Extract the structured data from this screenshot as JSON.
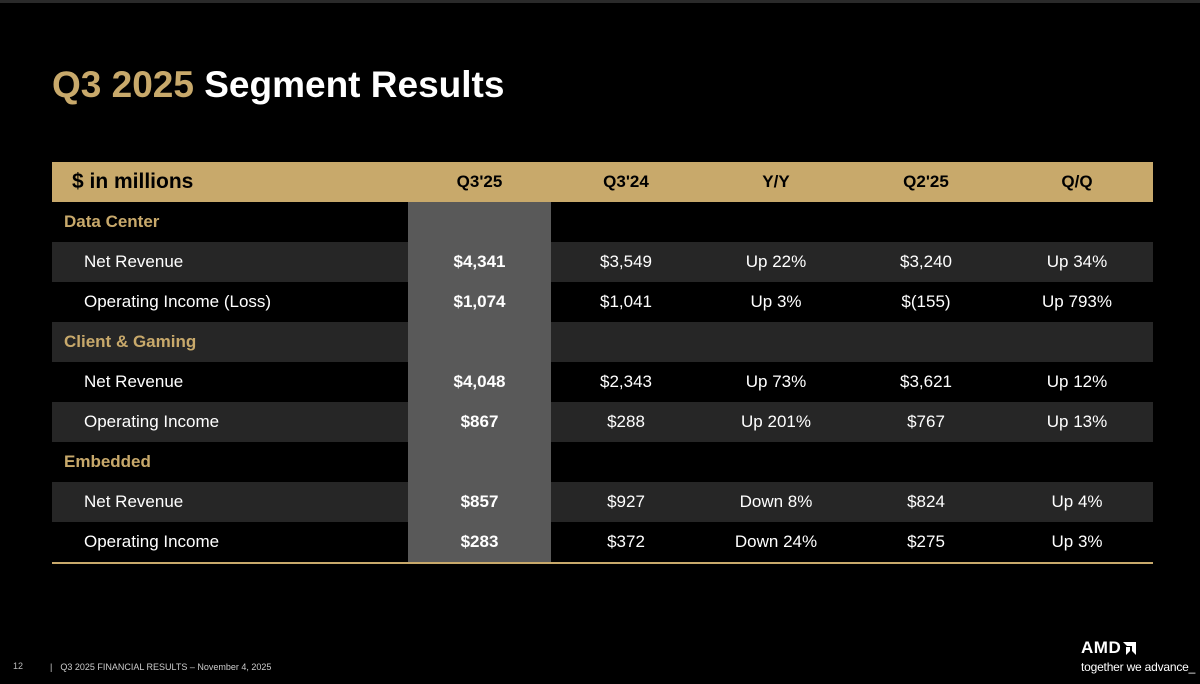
{
  "slide": {
    "title_accent": "Q3 2025",
    "title_rest": "Segment Results",
    "page_number": "12",
    "footer_separator": "|",
    "footer_text": "Q3 2025 FINANCIAL RESULTS – November 4, 2025"
  },
  "brand": {
    "logo_text": "AMD",
    "logo_icon": "amd-arrow-icon",
    "tagline": "together we advance_"
  },
  "colors": {
    "gold": "#c8a96b",
    "highlight_column": "#595959",
    "row_band": "#262626",
    "background": "#000000"
  },
  "table": {
    "headers": [
      "$ in millions",
      "Q3'25",
      "Q3'24",
      "Y/Y",
      "Q2'25",
      "Q/Q"
    ],
    "sections": [
      {
        "name": "Data Center",
        "rows": [
          {
            "label": "Net Revenue",
            "values": [
              "$4,341",
              "$3,549",
              "Up 22%",
              "$3,240",
              "Up 34%"
            ]
          },
          {
            "label": "Operating Income (Loss)",
            "values": [
              "$1,074",
              "$1,041",
              "Up 3%",
              "$(155)",
              "Up 793%"
            ]
          }
        ]
      },
      {
        "name": "Client & Gaming",
        "rows": [
          {
            "label": "Net Revenue",
            "values": [
              "$4,048",
              "$2,343",
              "Up 73%",
              "$3,621",
              "Up 12%"
            ]
          },
          {
            "label": "Operating Income",
            "values": [
              "$867",
              "$288",
              "Up 201%",
              "$767",
              "Up 13%"
            ]
          }
        ]
      },
      {
        "name": "Embedded",
        "rows": [
          {
            "label": "Net Revenue",
            "values": [
              "$857",
              "$927",
              "Down 8%",
              "$824",
              "Up 4%"
            ]
          },
          {
            "label": "Operating Income",
            "values": [
              "$283",
              "$372",
              "Down 24%",
              "$275",
              "Up 3%"
            ]
          }
        ]
      }
    ]
  }
}
